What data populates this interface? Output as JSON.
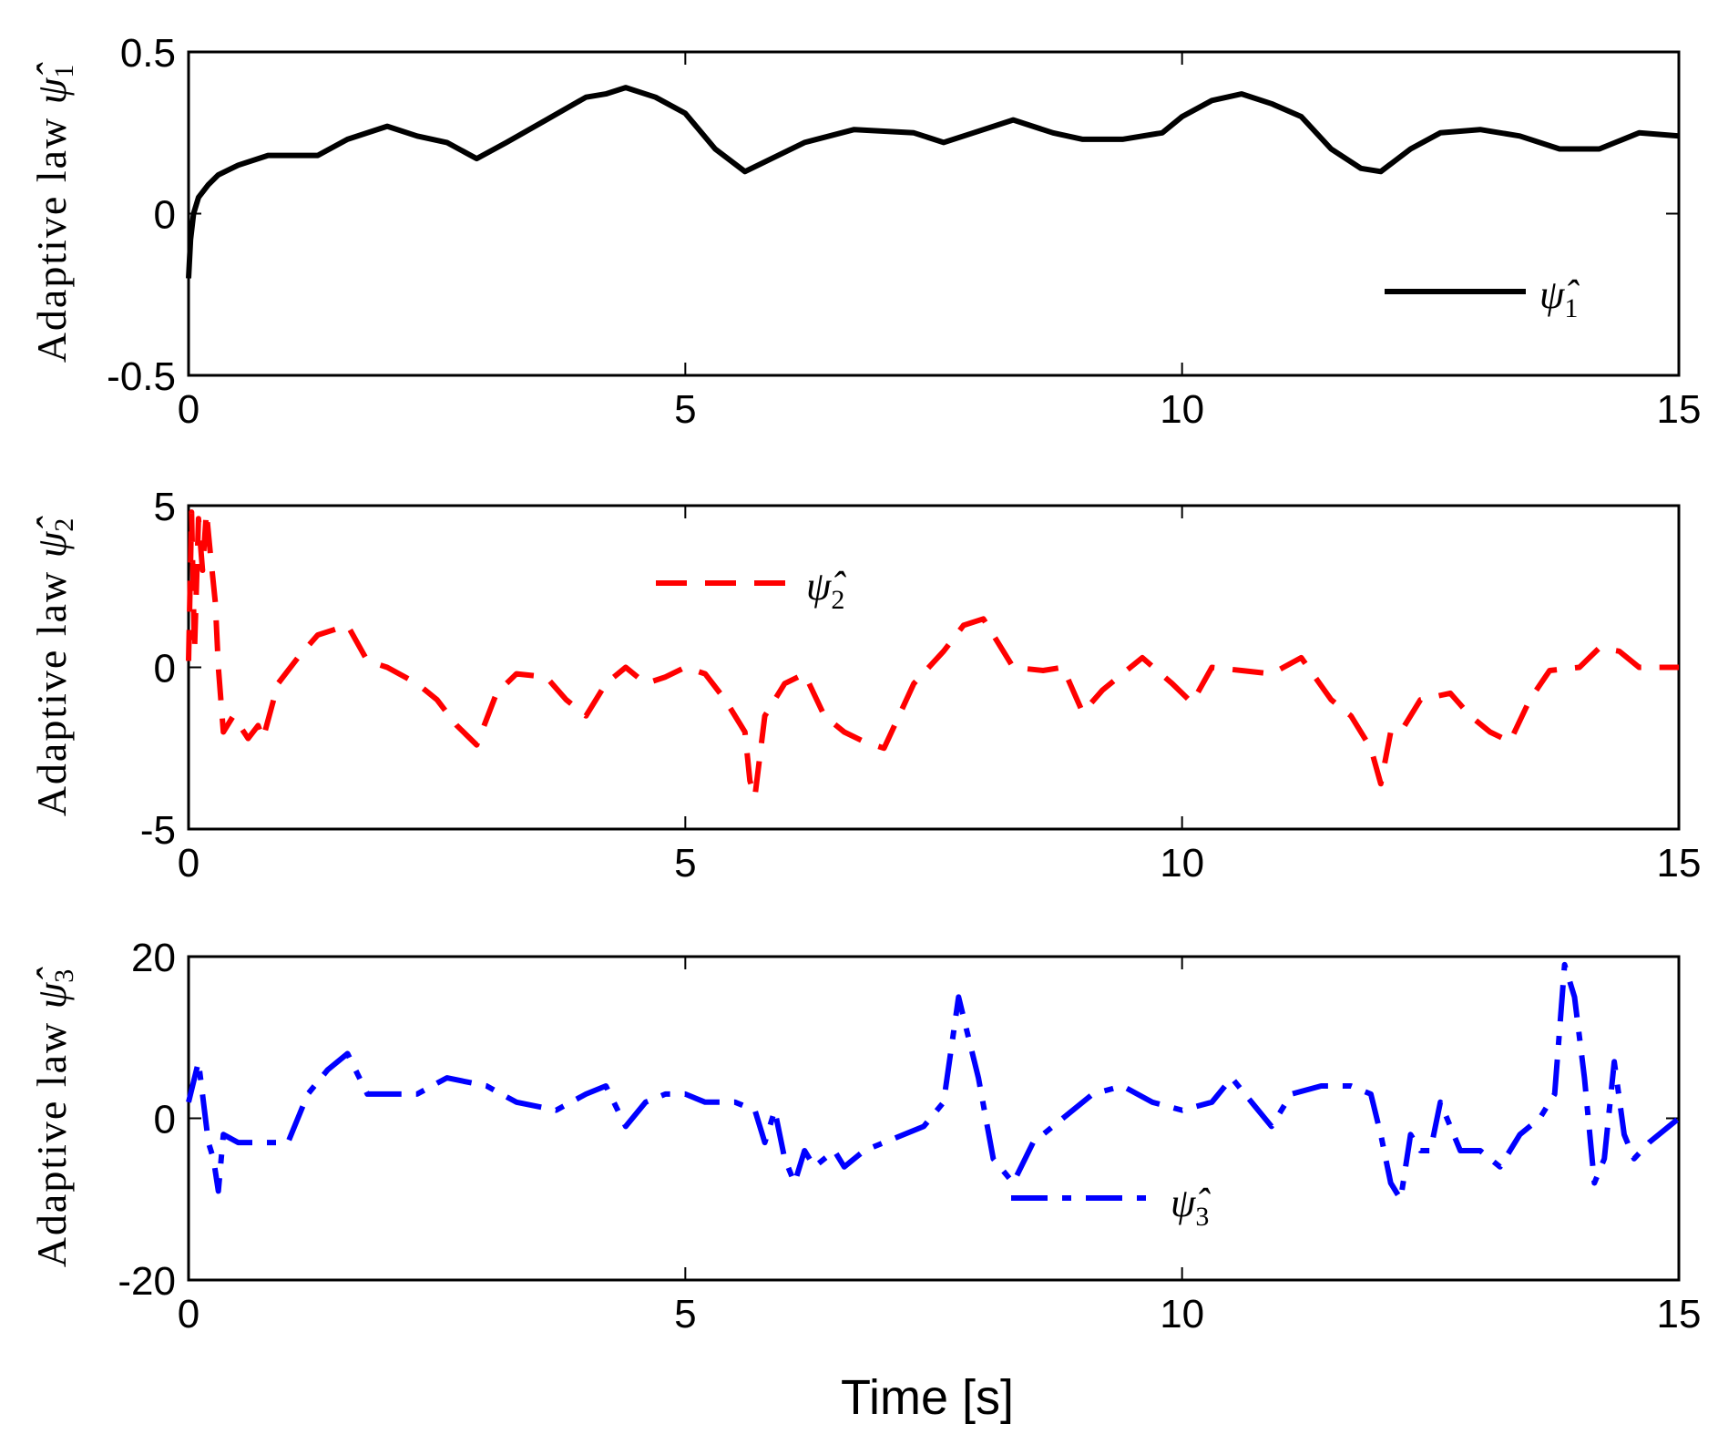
{
  "figure": {
    "xlabel": "Time [s]"
  },
  "chart_data": [
    {
      "type": "line",
      "ylabel_text": "Adaptive law ",
      "ylabel_symbol": "ψ̂",
      "ylabel_sub": "1",
      "xlim": [
        0,
        15
      ],
      "ylim": [
        -0.5,
        0.5
      ],
      "xticks": [
        0,
        5,
        10,
        15
      ],
      "yticks": [
        -0.5,
        0,
        0.5
      ],
      "xtick_labels": [
        "0",
        "5",
        "10",
        "15"
      ],
      "ytick_labels": [
        "-0.5",
        "0",
        "0.5"
      ],
      "grid": false,
      "legend_placement": "bottom-right",
      "series": [
        {
          "name": "ψ̂1",
          "name_symbol": "ψ̂",
          "name_sub": "1",
          "color": "#000000",
          "style": "solid",
          "x": [
            0,
            0.02,
            0.05,
            0.1,
            0.2,
            0.3,
            0.5,
            0.8,
            1.0,
            1.3,
            1.6,
            2.0,
            2.3,
            2.6,
            2.9,
            3.2,
            3.6,
            4.0,
            4.2,
            4.4,
            4.7,
            5.0,
            5.3,
            5.6,
            5.8,
            6.2,
            6.7,
            7.3,
            7.6,
            7.9,
            8.3,
            8.7,
            9.0,
            9.4,
            9.8,
            10.0,
            10.3,
            10.6,
            10.9,
            11.2,
            11.5,
            11.8,
            12.0,
            12.3,
            12.6,
            13.0,
            13.4,
            13.8,
            14.2,
            14.6,
            15.0
          ],
          "y": [
            -0.2,
            -0.08,
            0.0,
            0.05,
            0.09,
            0.12,
            0.15,
            0.18,
            0.18,
            0.18,
            0.23,
            0.27,
            0.24,
            0.22,
            0.17,
            0.22,
            0.29,
            0.36,
            0.37,
            0.39,
            0.36,
            0.31,
            0.2,
            0.13,
            0.16,
            0.22,
            0.26,
            0.25,
            0.22,
            0.25,
            0.29,
            0.25,
            0.23,
            0.23,
            0.25,
            0.3,
            0.35,
            0.37,
            0.34,
            0.3,
            0.2,
            0.14,
            0.13,
            0.2,
            0.25,
            0.26,
            0.24,
            0.2,
            0.2,
            0.25,
            0.24
          ]
        }
      ]
    },
    {
      "type": "line",
      "ylabel_text": "Adaptive law ",
      "ylabel_symbol": "ψ̂",
      "ylabel_sub": "2",
      "xlim": [
        0,
        15
      ],
      "ylim": [
        -5,
        5
      ],
      "xticks": [
        0,
        5,
        10,
        15
      ],
      "yticks": [
        -5,
        0,
        5
      ],
      "xtick_labels": [
        "0",
        "5",
        "10",
        "15"
      ],
      "ytick_labels": [
        "-5",
        "0",
        "5"
      ],
      "grid": false,
      "legend_placement": "top-center",
      "series": [
        {
          "name": "ψ̂2",
          "name_symbol": "ψ̂",
          "name_sub": "2",
          "color": "#ff0000",
          "style": "dashed",
          "x": [
            0,
            0.03,
            0.06,
            0.1,
            0.14,
            0.18,
            0.22,
            0.27,
            0.3,
            0.35,
            0.45,
            0.6,
            0.7,
            0.75,
            0.9,
            1.1,
            1.3,
            1.6,
            1.8,
            2.0,
            2.3,
            2.5,
            2.7,
            2.9,
            3.1,
            3.3,
            3.6,
            3.8,
            4.0,
            4.2,
            4.4,
            4.6,
            4.8,
            5.0,
            5.2,
            5.4,
            5.6,
            5.65,
            5.7,
            5.8,
            6.0,
            6.2,
            6.4,
            6.6,
            6.8,
            7.0,
            7.3,
            7.6,
            7.8,
            8.0,
            8.3,
            8.6,
            8.8,
            9.0,
            9.2,
            9.6,
            9.9,
            10.1,
            10.3,
            10.6,
            10.9,
            11.2,
            11.5,
            11.7,
            11.9,
            12.0,
            12.1,
            12.2,
            12.4,
            12.7,
            12.9,
            13.1,
            13.3,
            13.5,
            13.7,
            14.0,
            14.2,
            14.4,
            14.6,
            15.0
          ],
          "y": [
            0.2,
            4.8,
            0.5,
            4.6,
            3.0,
            4.8,
            3.5,
            2.0,
            0.0,
            -2.0,
            -1.5,
            -2.2,
            -1.8,
            -2.2,
            -0.5,
            0.3,
            1.0,
            1.3,
            0.2,
            0.0,
            -0.5,
            -1.0,
            -1.8,
            -2.4,
            -0.8,
            -0.2,
            -0.3,
            -1.0,
            -1.5,
            -0.5,
            0.0,
            -0.5,
            -0.3,
            0.0,
            -0.2,
            -1.0,
            -2.0,
            -3.5,
            -4.0,
            -1.5,
            -0.5,
            -0.2,
            -1.5,
            -2.0,
            -2.3,
            -2.5,
            -0.5,
            0.5,
            1.3,
            1.5,
            0.0,
            -0.1,
            0.0,
            -1.4,
            -0.7,
            0.3,
            -0.5,
            -1.1,
            0.0,
            -0.1,
            -0.2,
            0.3,
            -1.0,
            -1.5,
            -2.5,
            -3.6,
            -2.0,
            -2.0,
            -1.0,
            -0.8,
            -1.5,
            -2.0,
            -2.3,
            -1.0,
            -0.1,
            0.0,
            0.6,
            0.5,
            0.0,
            0.0
          ]
        }
      ]
    },
    {
      "type": "line",
      "ylabel_text": "Adaptive law ",
      "ylabel_symbol": "ψ̂",
      "ylabel_sub": "3",
      "xlim": [
        0,
        15
      ],
      "ylim": [
        -20,
        20
      ],
      "xticks": [
        0,
        5,
        10,
        15
      ],
      "yticks": [
        -20,
        0,
        20
      ],
      "xtick_labels": [
        "0",
        "5",
        "10",
        "15"
      ],
      "ytick_labels": [
        "-20",
        "0",
        "20"
      ],
      "grid": false,
      "legend_placement": "bottom-center",
      "series": [
        {
          "name": "ψ̂3",
          "name_symbol": "ψ̂",
          "name_sub": "3",
          "color": "#0000ff",
          "style": "dashdot",
          "x": [
            0,
            0.1,
            0.2,
            0.25,
            0.3,
            0.35,
            0.5,
            0.7,
            0.8,
            1.0,
            1.2,
            1.4,
            1.6,
            1.8,
            2.0,
            2.3,
            2.6,
            3.0,
            3.3,
            3.7,
            4.0,
            4.2,
            4.4,
            4.6,
            4.8,
            5.0,
            5.2,
            5.5,
            5.7,
            5.8,
            5.9,
            6.0,
            6.1,
            6.2,
            6.3,
            6.4,
            6.5,
            6.6,
            6.7,
            6.8,
            7.0,
            7.4,
            7.6,
            7.75,
            7.85,
            7.95,
            8.1,
            8.3,
            8.5,
            8.8,
            9.1,
            9.4,
            9.7,
            10.0,
            10.3,
            10.5,
            10.7,
            10.9,
            11.1,
            11.4,
            11.7,
            11.9,
            12.0,
            12.1,
            12.2,
            12.3,
            12.4,
            12.5,
            12.6,
            12.8,
            13.0,
            13.2,
            13.4,
            13.6,
            13.75,
            13.85,
            13.95,
            14.05,
            14.15,
            14.25,
            14.35,
            14.45,
            14.55,
            14.7,
            15.0
          ],
          "y": [
            2,
            7,
            -3,
            -5,
            -9,
            -2,
            -3,
            -3,
            -3,
            -3,
            3,
            6,
            8,
            3,
            3,
            3,
            5,
            4,
            2,
            1,
            3,
            4,
            -1,
            2,
            3,
            3,
            2,
            2,
            1,
            -3,
            1,
            -5,
            -8,
            -4,
            -6,
            -5,
            -4,
            -6,
            -5,
            -4,
            -3,
            -1,
            2,
            15,
            10,
            5,
            -5,
            -8,
            -3,
            0,
            3,
            4,
            2,
            1,
            2,
            5,
            2,
            -1,
            3,
            4,
            4,
            3,
            -2,
            -8,
            -10,
            -2,
            -4,
            -4,
            2,
            -4,
            -4,
            -6,
            -2,
            0,
            3,
            19,
            15,
            5,
            -8,
            -5,
            7,
            -2,
            -5,
            -3,
            0
          ]
        }
      ]
    }
  ]
}
